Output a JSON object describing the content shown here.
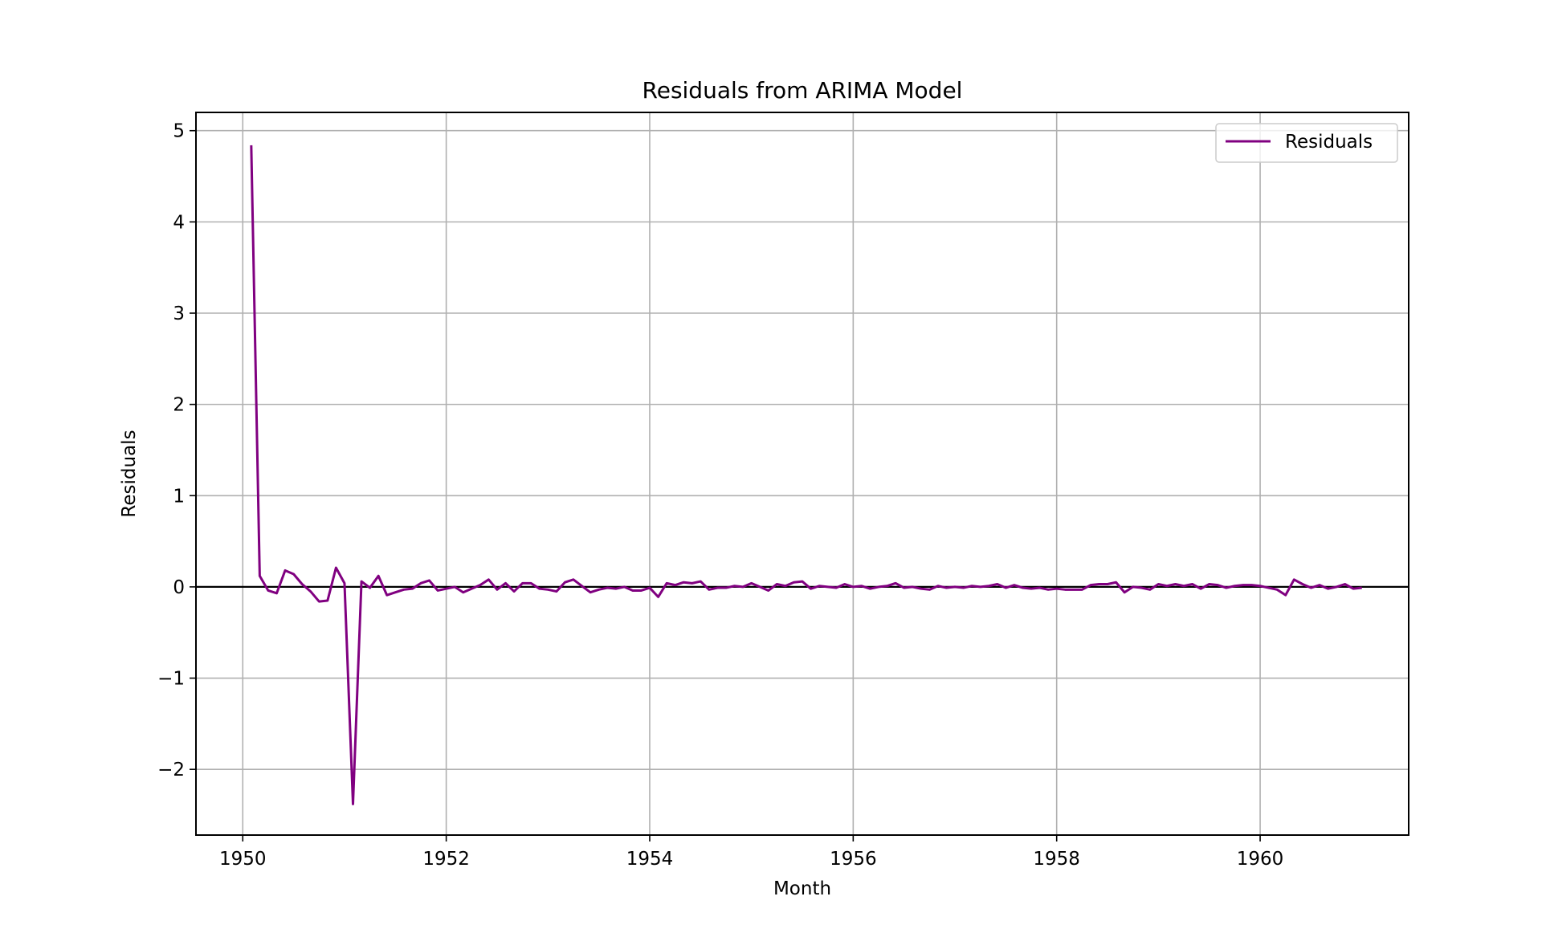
{
  "chart_data": {
    "type": "line",
    "title": "Residuals from ARIMA Model",
    "xlabel": "Month",
    "ylabel": "Residuals",
    "xlim": [
      1949.54,
      1961.46
    ],
    "ylim": [
      -2.72,
      5.2
    ],
    "x_ticks": [
      1950,
      1952,
      1954,
      1956,
      1958,
      1960
    ],
    "y_ticks": [
      -2,
      -1,
      0,
      1,
      2,
      3,
      4,
      5
    ],
    "y_tick_labels": [
      "−2",
      "−1",
      "0",
      "1",
      "2",
      "3",
      "4",
      "5"
    ],
    "grid": true,
    "zero_line": {
      "y": 0,
      "color": "#000000"
    },
    "legend": {
      "position": "top-right",
      "entries": [
        "Residuals"
      ]
    },
    "series": [
      {
        "name": "Residuals",
        "color": "#800080",
        "x_start": "1950-02",
        "x_step_months": 1,
        "values": [
          4.84,
          0.12,
          -0.04,
          -0.07,
          0.18,
          0.14,
          0.03,
          -0.05,
          -0.16,
          -0.15,
          0.21,
          0.04,
          -2.38,
          0.06,
          -0.01,
          0.12,
          -0.09,
          -0.06,
          -0.03,
          -0.02,
          0.04,
          0.07,
          -0.04,
          -0.02,
          0.0,
          -0.06,
          -0.02,
          0.02,
          0.08,
          -0.03,
          0.04,
          -0.05,
          0.04,
          0.04,
          -0.02,
          -0.03,
          -0.05,
          0.05,
          0.08,
          0.01,
          -0.06,
          -0.03,
          -0.01,
          -0.02,
          0.0,
          -0.04,
          -0.04,
          -0.01,
          -0.11,
          0.04,
          0.02,
          0.05,
          0.04,
          0.06,
          -0.03,
          -0.01,
          -0.01,
          0.01,
          0.0,
          0.04,
          0.0,
          -0.04,
          0.03,
          0.01,
          0.05,
          0.06,
          -0.02,
          0.01,
          0.0,
          -0.01,
          0.03,
          0.0,
          0.01,
          -0.02,
          0.0,
          0.01,
          0.04,
          -0.01,
          0.0,
          -0.02,
          -0.03,
          0.01,
          -0.01,
          0.0,
          -0.01,
          0.01,
          0.0,
          0.01,
          0.03,
          -0.01,
          0.02,
          -0.01,
          -0.02,
          -0.01,
          -0.03,
          -0.02,
          -0.03,
          -0.03,
          -0.03,
          0.02,
          0.03,
          0.03,
          0.05,
          -0.06,
          0.0,
          -0.01,
          -0.03,
          0.03,
          0.01,
          0.03,
          0.01,
          0.03,
          -0.02,
          0.03,
          0.02,
          -0.01,
          0.01,
          0.02,
          0.02,
          0.01,
          -0.01,
          -0.03,
          -0.09,
          0.08,
          0.03,
          -0.01,
          0.02,
          -0.02,
          0.0,
          0.03,
          -0.02,
          -0.01
        ]
      }
    ]
  }
}
